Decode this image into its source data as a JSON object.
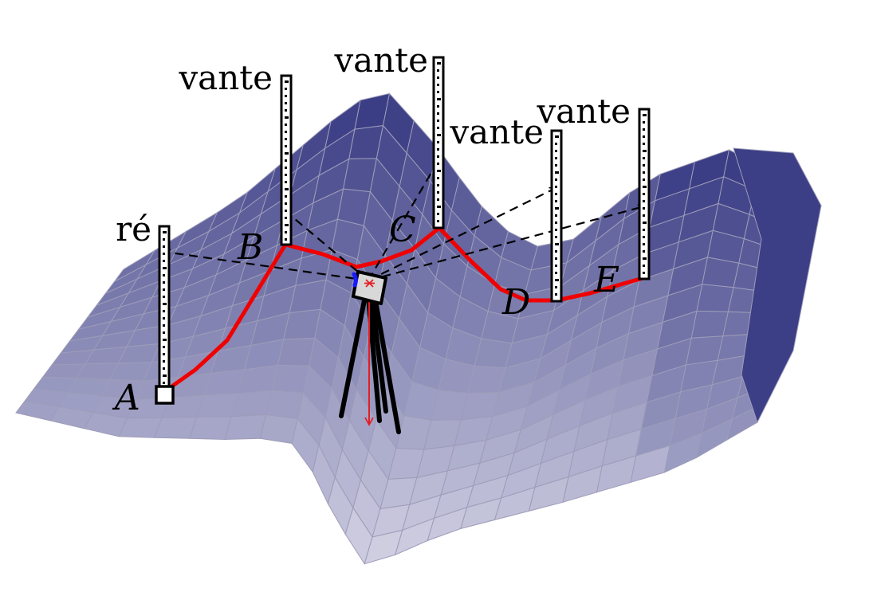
{
  "colors": {
    "surface_dark": "#2d2f7c",
    "surface_light": "#ecebf4",
    "surface_edge": "#9d9cb9",
    "route": "#f00000",
    "sight_line": "#000000",
    "plumb_line": "#e31e24",
    "bubble": "#1a1aff",
    "staff_fill": "#ffffff",
    "staff_outline": "#000000"
  },
  "staffs": [
    {
      "id": "backsight",
      "label": "ré"
    },
    {
      "id": "fs-b",
      "label": "vante"
    },
    {
      "id": "fs-c",
      "label": "vante"
    },
    {
      "id": "fs-d",
      "label": "vante"
    },
    {
      "id": "fs-e",
      "label": "vante"
    }
  ],
  "points": [
    {
      "id": "A",
      "label": "A"
    },
    {
      "id": "B",
      "label": "B"
    },
    {
      "id": "C",
      "label": "C"
    },
    {
      "id": "D",
      "label": "D"
    },
    {
      "id": "E",
      "label": "E"
    }
  ],
  "instrument": {
    "icon": "level-instrument-icon",
    "tripod_icon": "tripod-icon"
  }
}
